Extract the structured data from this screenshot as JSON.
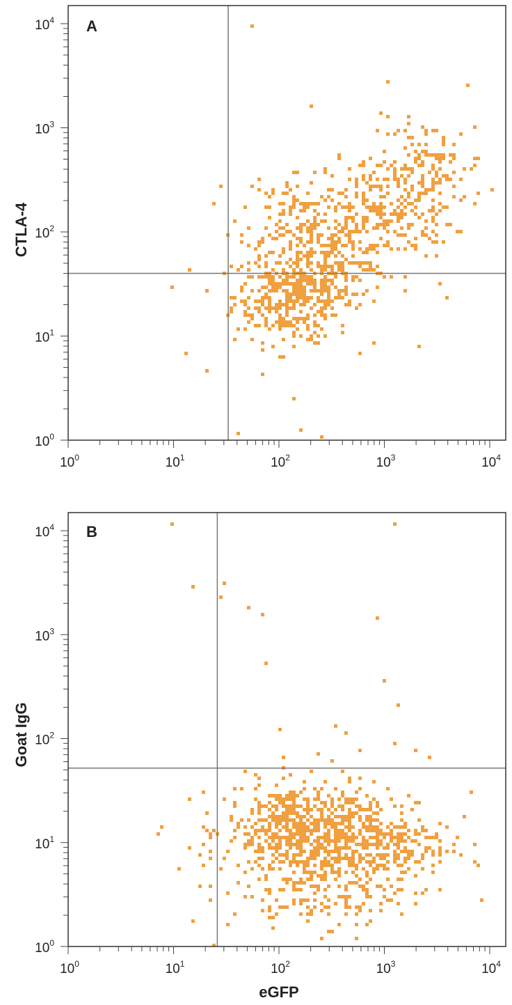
{
  "chart_data": [
    {
      "type": "scatter",
      "panel": "A",
      "xlabel": "",
      "ylabel": "CTLA-4",
      "xscale": "log",
      "yscale": "log",
      "xlim": [
        1,
        10000
      ],
      "ylim": [
        1,
        10000
      ],
      "x_ticks": [
        {
          "base": "10",
          "exp": "0"
        },
        {
          "base": "10",
          "exp": "1"
        },
        {
          "base": "10",
          "exp": "2"
        },
        {
          "base": "10",
          "exp": "3"
        },
        {
          "base": "10",
          "exp": "4"
        }
      ],
      "y_ticks": [
        {
          "base": "10",
          "exp": "0"
        },
        {
          "base": "10",
          "exp": "1"
        },
        {
          "base": "10",
          "exp": "2"
        },
        {
          "base": "10",
          "exp": "3"
        },
        {
          "base": "10",
          "exp": "4"
        }
      ],
      "quadrant_gate": {
        "x": 33,
        "y": 40
      },
      "dot_color": "#f0a040",
      "clusters": [
        {
          "cx": 130,
          "cy": 25,
          "sx": 0.28,
          "sy": 0.22,
          "n": 380
        },
        {
          "cx": 300,
          "cy": 60,
          "sx": 0.3,
          "sy": 0.2,
          "n": 230
        },
        {
          "cx": 150,
          "cy": 170,
          "sx": 0.28,
          "sy": 0.2,
          "n": 120
        },
        {
          "cx": 1100,
          "cy": 180,
          "sx": 0.3,
          "sy": 0.25,
          "n": 230
        },
        {
          "cx": 2500,
          "cy": 450,
          "sx": 0.28,
          "sy": 0.22,
          "n": 110
        }
      ],
      "points": [
        {
          "x": 55,
          "y": 10000
        },
        {
          "x": 1000,
          "y": 2900
        },
        {
          "x": 6000,
          "y": 2700
        },
        {
          "x": 200,
          "y": 1700
        },
        {
          "x": 1500,
          "y": 1000
        },
        {
          "x": 7000,
          "y": 190
        },
        {
          "x": 9,
          "y": 30
        },
        {
          "x": 13,
          "y": 7
        },
        {
          "x": 20,
          "y": 5
        },
        {
          "x": 40,
          "y": 1.2
        },
        {
          "x": 150,
          "y": 1.3
        },
        {
          "x": 250,
          "y": 1
        },
        {
          "x": 130,
          "y": 2.7
        },
        {
          "x": 3200,
          "y": 32
        },
        {
          "x": 3800,
          "y": 24
        },
        {
          "x": 2100,
          "y": 8.5
        }
      ]
    },
    {
      "type": "scatter",
      "panel": "B",
      "xlabel": "eGFP",
      "ylabel": "Goat IgG",
      "xscale": "log",
      "yscale": "log",
      "xlim": [
        1,
        10000
      ],
      "ylim": [
        1,
        10000
      ],
      "x_ticks": [
        {
          "base": "10",
          "exp": "0"
        },
        {
          "base": "10",
          "exp": "1"
        },
        {
          "base": "10",
          "exp": "2"
        },
        {
          "base": "10",
          "exp": "3"
        },
        {
          "base": "10",
          "exp": "4"
        }
      ],
      "y_ticks": [
        {
          "base": "10",
          "exp": "0"
        },
        {
          "base": "10",
          "exp": "1"
        },
        {
          "base": "10",
          "exp": "2"
        },
        {
          "base": "10",
          "exp": "3"
        },
        {
          "base": "10",
          "exp": "4"
        }
      ],
      "quadrant_gate": {
        "x": 26,
        "y": 52
      },
      "dot_color": "#f0a040",
      "clusters": [
        {
          "cx": 150,
          "cy": 14,
          "sx": 0.35,
          "sy": 0.22,
          "n": 520
        },
        {
          "cx": 700,
          "cy": 10,
          "sx": 0.38,
          "sy": 0.25,
          "n": 380
        },
        {
          "cx": 200,
          "cy": 3.5,
          "sx": 0.4,
          "sy": 0.2,
          "n": 140
        }
      ],
      "points": [
        {
          "x": 9,
          "y": 12000
        },
        {
          "x": 1200,
          "y": 12000
        },
        {
          "x": 15,
          "y": 3100
        },
        {
          "x": 30,
          "y": 3300
        },
        {
          "x": 28,
          "y": 2300
        },
        {
          "x": 50,
          "y": 1900
        },
        {
          "x": 68,
          "y": 1600
        },
        {
          "x": 820,
          "y": 1450
        },
        {
          "x": 70,
          "y": 530
        },
        {
          "x": 950,
          "y": 380
        },
        {
          "x": 1300,
          "y": 220
        },
        {
          "x": 100,
          "y": 130
        },
        {
          "x": 340,
          "y": 140
        },
        {
          "x": 420,
          "y": 115
        },
        {
          "x": 230,
          "y": 75
        },
        {
          "x": 560,
          "y": 80
        },
        {
          "x": 1250,
          "y": 90
        },
        {
          "x": 1900,
          "y": 80
        },
        {
          "x": 2600,
          "y": 70
        },
        {
          "x": 105,
          "y": 66
        },
        {
          "x": 7,
          "y": 13
        },
        {
          "x": 11,
          "y": 6
        },
        {
          "x": 14,
          "y": 9
        },
        {
          "x": 17,
          "y": 4
        },
        {
          "x": 20,
          "y": 20
        },
        {
          "x": 22,
          "y": 3
        },
        {
          "x": 24,
          "y": 1
        },
        {
          "x": 6500,
          "y": 32
        },
        {
          "x": 6800,
          "y": 7
        }
      ]
    }
  ]
}
